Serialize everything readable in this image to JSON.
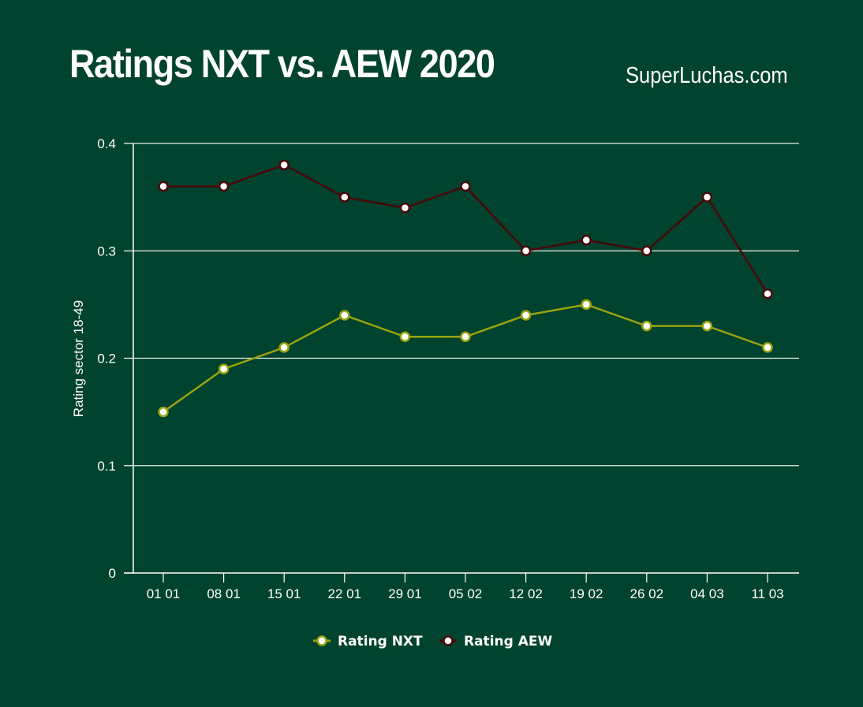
{
  "title": "Ratings NXT vs. AEW 2020",
  "source": "SuperLuchas.com",
  "chart_data": {
    "type": "line",
    "title": "Ratings NXT vs. AEW 2020",
    "xlabel": "",
    "ylabel": "Rating sector 18-49",
    "ylim": [
      0,
      0.4
    ],
    "yticks": [
      "0",
      "0.1",
      "0.2",
      "0.3",
      "0.4"
    ],
    "grid": true,
    "legend": "bottom",
    "categories": [
      "01 01",
      "08 01",
      "15 01",
      "22 01",
      "29 01",
      "05 02",
      "12 02",
      "19 02",
      "26 02",
      "04 03",
      "11 03"
    ],
    "series": [
      {
        "name": "Rating NXT",
        "color": "#9aa40f",
        "values": [
          0.15,
          0.19,
          0.21,
          0.24,
          0.22,
          0.22,
          0.24,
          0.25,
          0.23,
          0.23,
          0.21
        ]
      },
      {
        "name": "Rating AEW",
        "color": "#4a0808",
        "values": [
          0.36,
          0.36,
          0.38,
          0.35,
          0.34,
          0.36,
          0.3,
          0.31,
          0.3,
          0.35,
          0.26
        ]
      }
    ]
  }
}
